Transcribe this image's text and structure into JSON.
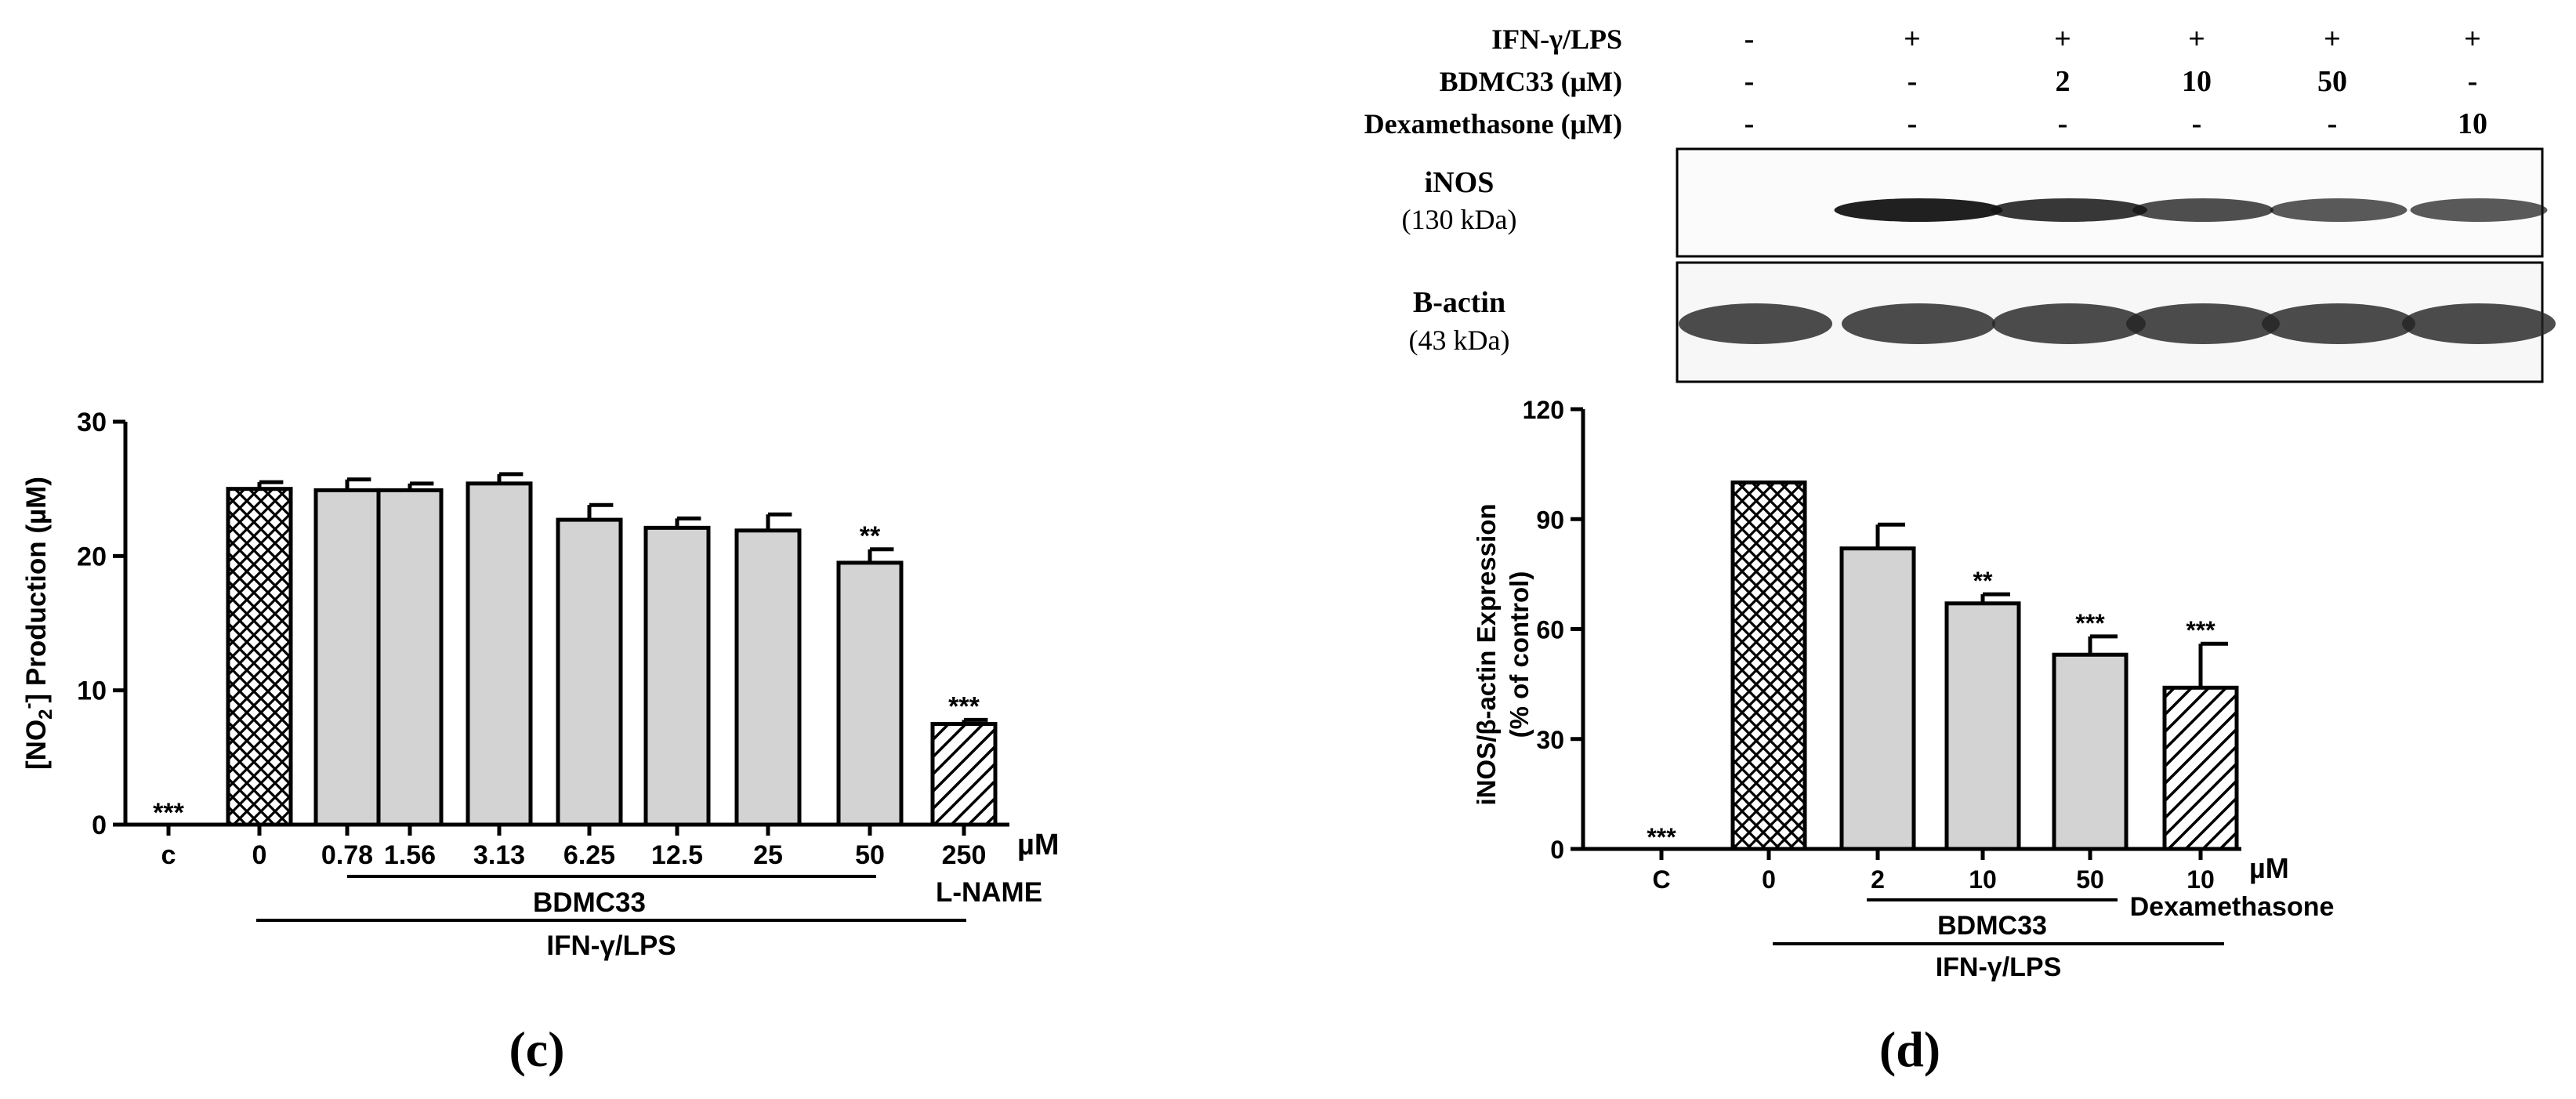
{
  "panel_c": {
    "panel_label": "(c)",
    "ylabel_main": "[NO",
    "ylabel_sub": "2",
    "ylabel_sup": "-",
    "ylabel_rest": "] Production (µM)",
    "unit_label": "µM",
    "group_bdmc": "BDMC33",
    "group_ifn": "IFN-γ/LPS",
    "lname_label": "L-NAME"
  },
  "panel_d": {
    "panel_label": "(d)",
    "ylabel_line1": "iNOS/β-actin Expression",
    "ylabel_line2": "(% of control)",
    "unit_label": "µM",
    "group_bdmc": "BDMC33",
    "group_ifn": "IFN-γ/LPS",
    "dexa_label": "Dexamethasone",
    "blot": {
      "rows": [
        {
          "label": "IFN-γ/LPS",
          "values": [
            "-",
            "+",
            "+",
            "+",
            "+",
            "+"
          ]
        },
        {
          "label": "BDMC33 (μM)",
          "values": [
            "-",
            "-",
            "2",
            "10",
            "50",
            "-"
          ]
        },
        {
          "label": "Dexamethasone (μM)",
          "values": [
            "-",
            "-",
            "-",
            "-",
            "-",
            "10"
          ]
        }
      ],
      "bands": [
        {
          "name": "iNOS",
          "size": "(130 kDa)"
        },
        {
          "name": "B-actin",
          "size": "(43 kDa)"
        }
      ]
    }
  },
  "chart_data": [
    {
      "type": "bar",
      "categories": [
        "c",
        "0",
        "0.78",
        "1.56",
        "3.13",
        "6.25",
        "12.5",
        "25",
        "50",
        "250"
      ],
      "values": [
        0,
        25.0,
        24.9,
        24.9,
        25.4,
        22.7,
        22.1,
        21.9,
        19.5,
        7.5
      ],
      "errors": [
        0,
        0.5,
        0.8,
        0.5,
        0.7,
        1.1,
        0.7,
        1.2,
        1.0,
        0.3
      ],
      "significance": [
        "***",
        "",
        "",
        "",
        "",
        "",
        "",
        "",
        "**",
        "***"
      ],
      "patterns": [
        "none",
        "crosshatch",
        "solid",
        "solid",
        "solid",
        "solid",
        "solid",
        "solid",
        "solid",
        "diagonal"
      ],
      "ylim": [
        0,
        30
      ],
      "yticks": [
        "0",
        "10",
        "20",
        "30"
      ],
      "colors": {
        "bar_fill": "#d3d3d3",
        "stroke": "#000000"
      }
    },
    {
      "type": "bar",
      "categories": [
        "C",
        "0",
        "2",
        "10",
        "50",
        "10"
      ],
      "values": [
        0,
        100,
        82,
        67,
        53,
        44
      ],
      "errors": [
        0,
        0,
        6.5,
        2.5,
        5,
        12
      ],
      "significance": [
        "***",
        "",
        "",
        "**",
        "***",
        "***"
      ],
      "patterns": [
        "none",
        "crosshatch",
        "solid",
        "solid",
        "solid",
        "diagonal"
      ],
      "ylim": [
        0,
        120
      ],
      "yticks": [
        "0",
        "30",
        "60",
        "90",
        "120"
      ],
      "colors": {
        "bar_fill": "#d3d3d3",
        "stroke": "#000000"
      }
    }
  ]
}
